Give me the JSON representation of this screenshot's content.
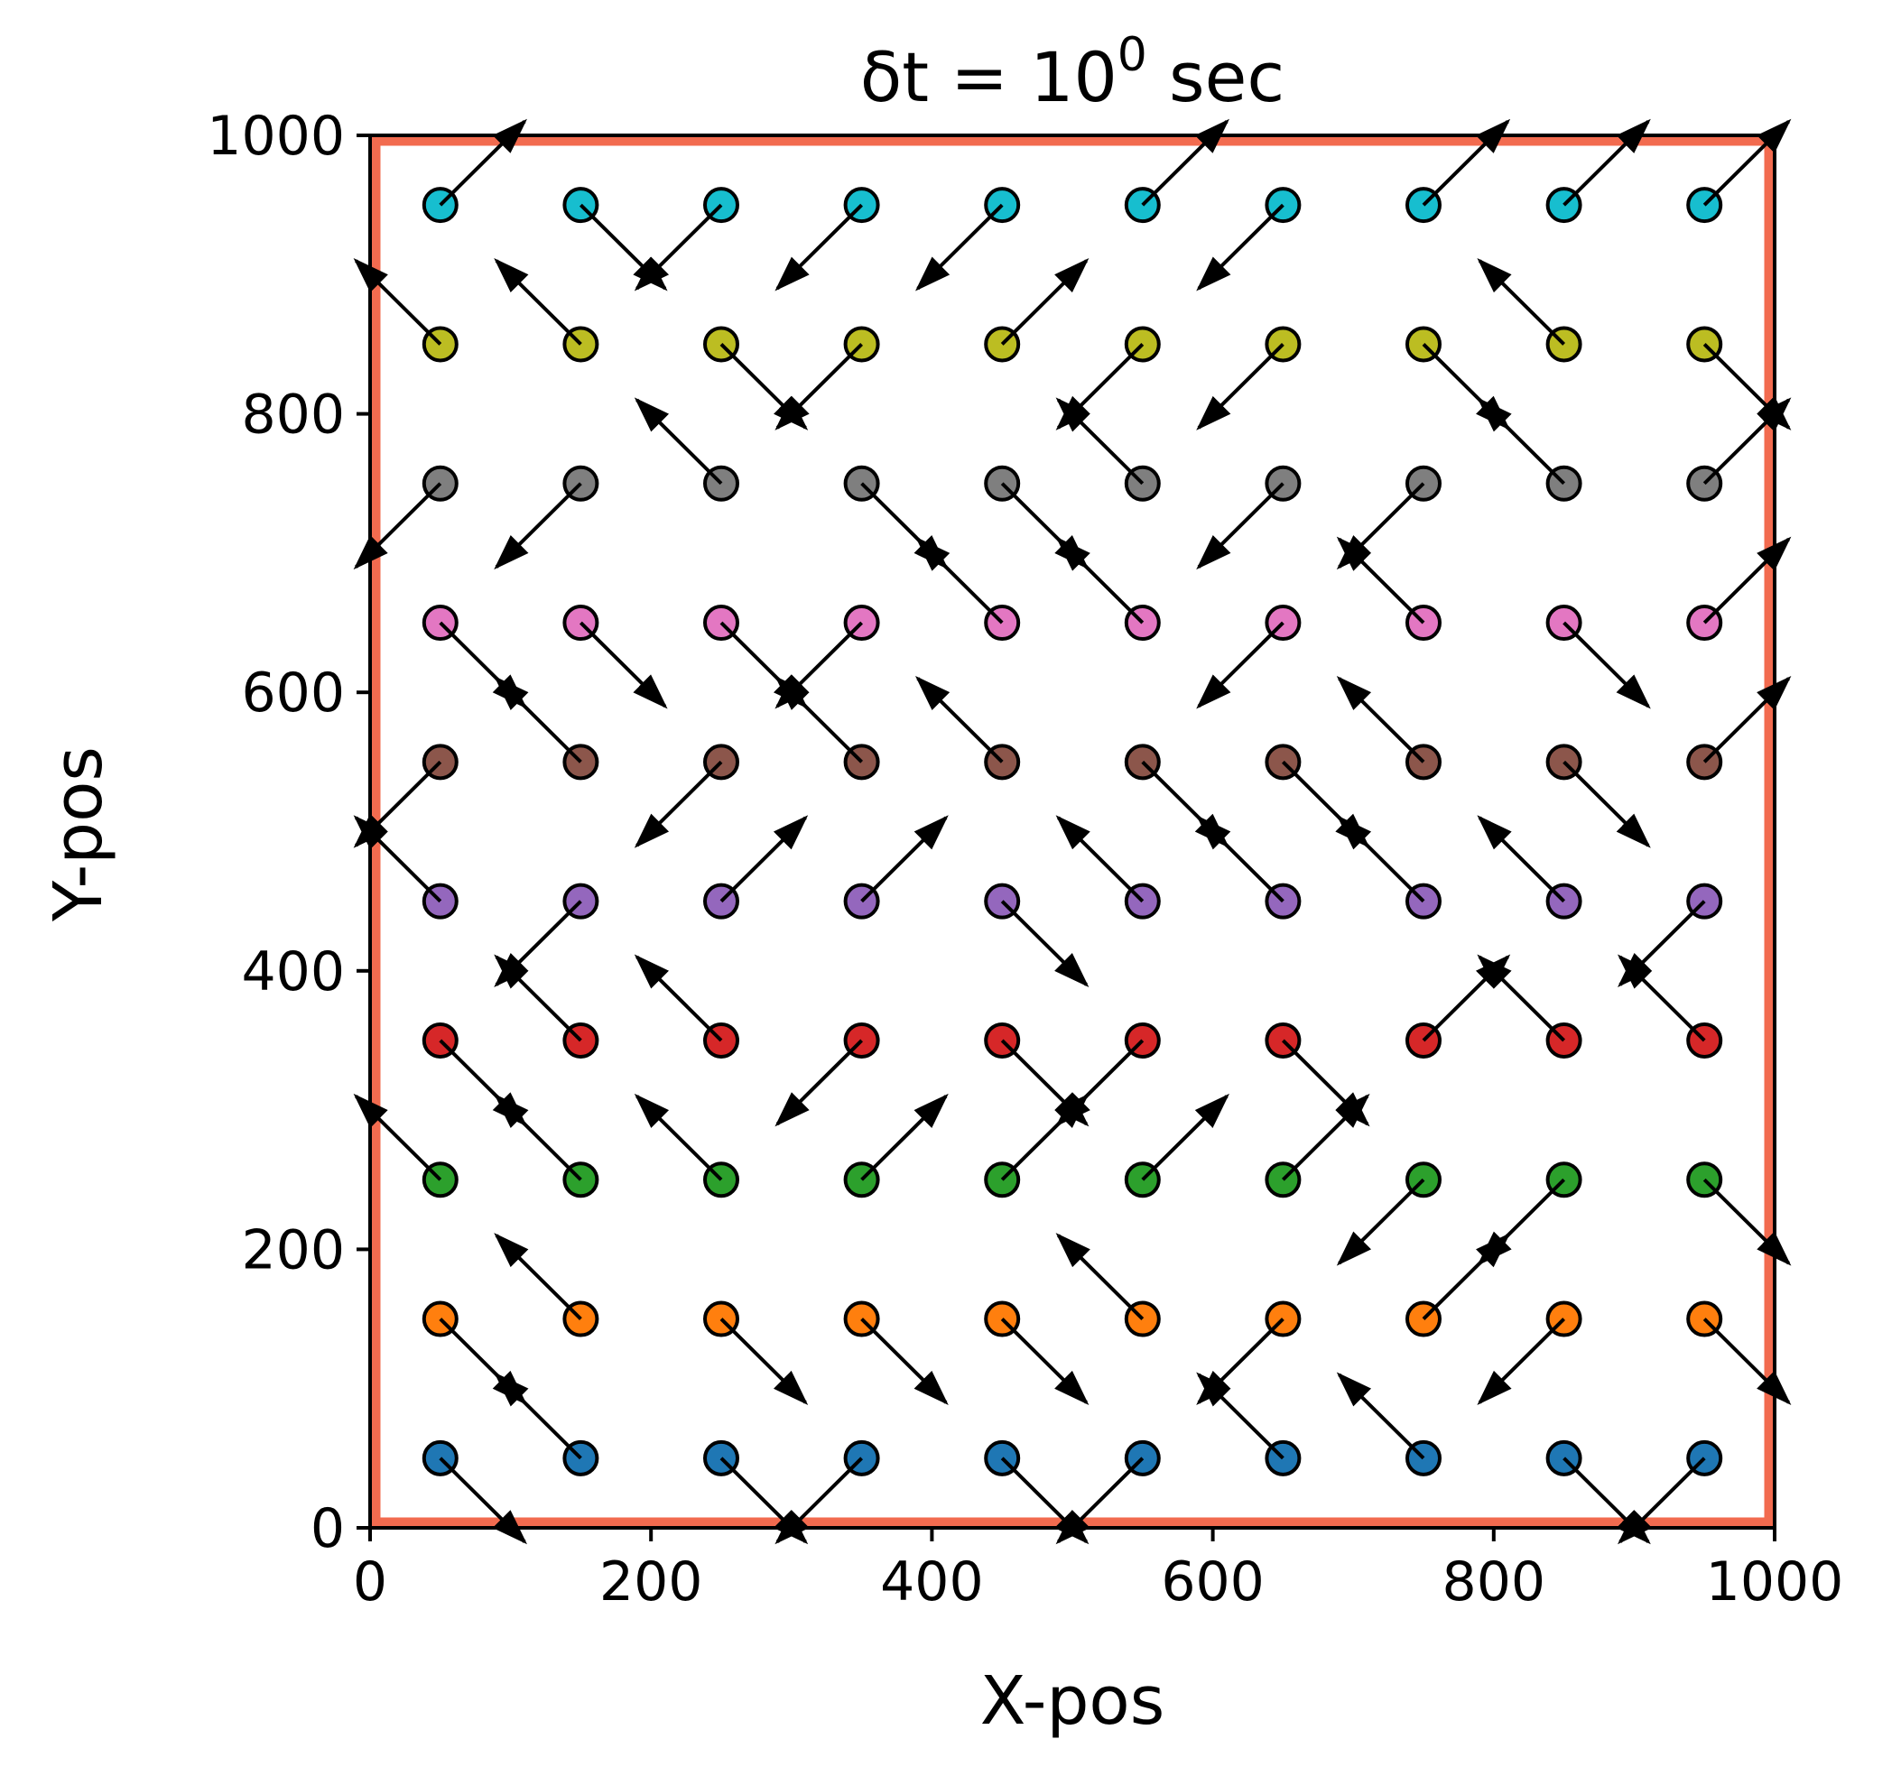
{
  "chart_data": {
    "type": "scatter",
    "title": {
      "prefix": "δt = 10",
      "exponent": "0",
      "suffix": " sec"
    },
    "xlabel": "X-pos",
    "ylabel": "Y-pos",
    "xlim": [
      0,
      1000
    ],
    "ylim": [
      0,
      1000
    ],
    "xticks": [
      "0",
      "200",
      "400",
      "600",
      "800",
      "1000"
    ],
    "yticks": [
      "0",
      "200",
      "400",
      "600",
      "800",
      "1000"
    ],
    "grid": false,
    "boundary": {
      "xmin": 0,
      "xmax": 1000,
      "ymin": 0,
      "ymax": 1000,
      "color": "#f26b4f"
    },
    "arrow_length": 60,
    "row_colors": [
      "#1f77b4",
      "#ff7f0e",
      "#2ca02c",
      "#d62728",
      "#9467bd",
      "#8c564b",
      "#e377c2",
      "#7f7f7f",
      "#bcbd22",
      "#17becf"
    ],
    "x_positions": [
      50,
      150,
      250,
      350,
      450,
      550,
      650,
      750,
      850,
      950
    ],
    "rows": [
      {
        "y": 50,
        "directions": [
          "DR",
          "UL",
          "DR",
          "DL",
          "DR",
          "DL",
          "UL",
          "UL",
          "DR",
          "DL"
        ]
      },
      {
        "y": 150,
        "directions": [
          "DR",
          "UL",
          "DR",
          "DR",
          "DR",
          "UL",
          "DL",
          "UR",
          "DL",
          "DR"
        ]
      },
      {
        "y": 250,
        "directions": [
          "UL",
          "UL",
          "UL",
          "UR",
          "UR",
          "UR",
          "UR",
          "DL",
          "DL",
          "DR"
        ]
      },
      {
        "y": 350,
        "directions": [
          "DR",
          "UL",
          "UL",
          "DL",
          "DR",
          "DL",
          "DR",
          "UR",
          "UL",
          "UL"
        ]
      },
      {
        "y": 450,
        "directions": [
          "UL",
          "DL",
          "UR",
          "UR",
          "DR",
          "UL",
          "UL",
          "UL",
          "UL",
          "DL"
        ]
      },
      {
        "y": 550,
        "directions": [
          "DL",
          "UL",
          "DL",
          "UL",
          "UL",
          "DR",
          "DR",
          "UL",
          "DR",
          "UR"
        ]
      },
      {
        "y": 650,
        "directions": [
          "DR",
          "DR",
          "DR",
          "DL",
          "UL",
          "UL",
          "DL",
          "UL",
          "DR",
          "UR"
        ]
      },
      {
        "y": 750,
        "directions": [
          "DL",
          "DL",
          "UL",
          "DR",
          "DR",
          "UL",
          "DL",
          "DL",
          "UL",
          "UR"
        ]
      },
      {
        "y": 850,
        "directions": [
          "UL",
          "UL",
          "DR",
          "DL",
          "UR",
          "DL",
          "DL",
          "DR",
          "UL",
          "DR"
        ]
      },
      {
        "y": 950,
        "directions": [
          "UR",
          "DR",
          "DL",
          "DL",
          "DL",
          "UR",
          "DL",
          "UR",
          "UR",
          "UR"
        ]
      }
    ]
  }
}
